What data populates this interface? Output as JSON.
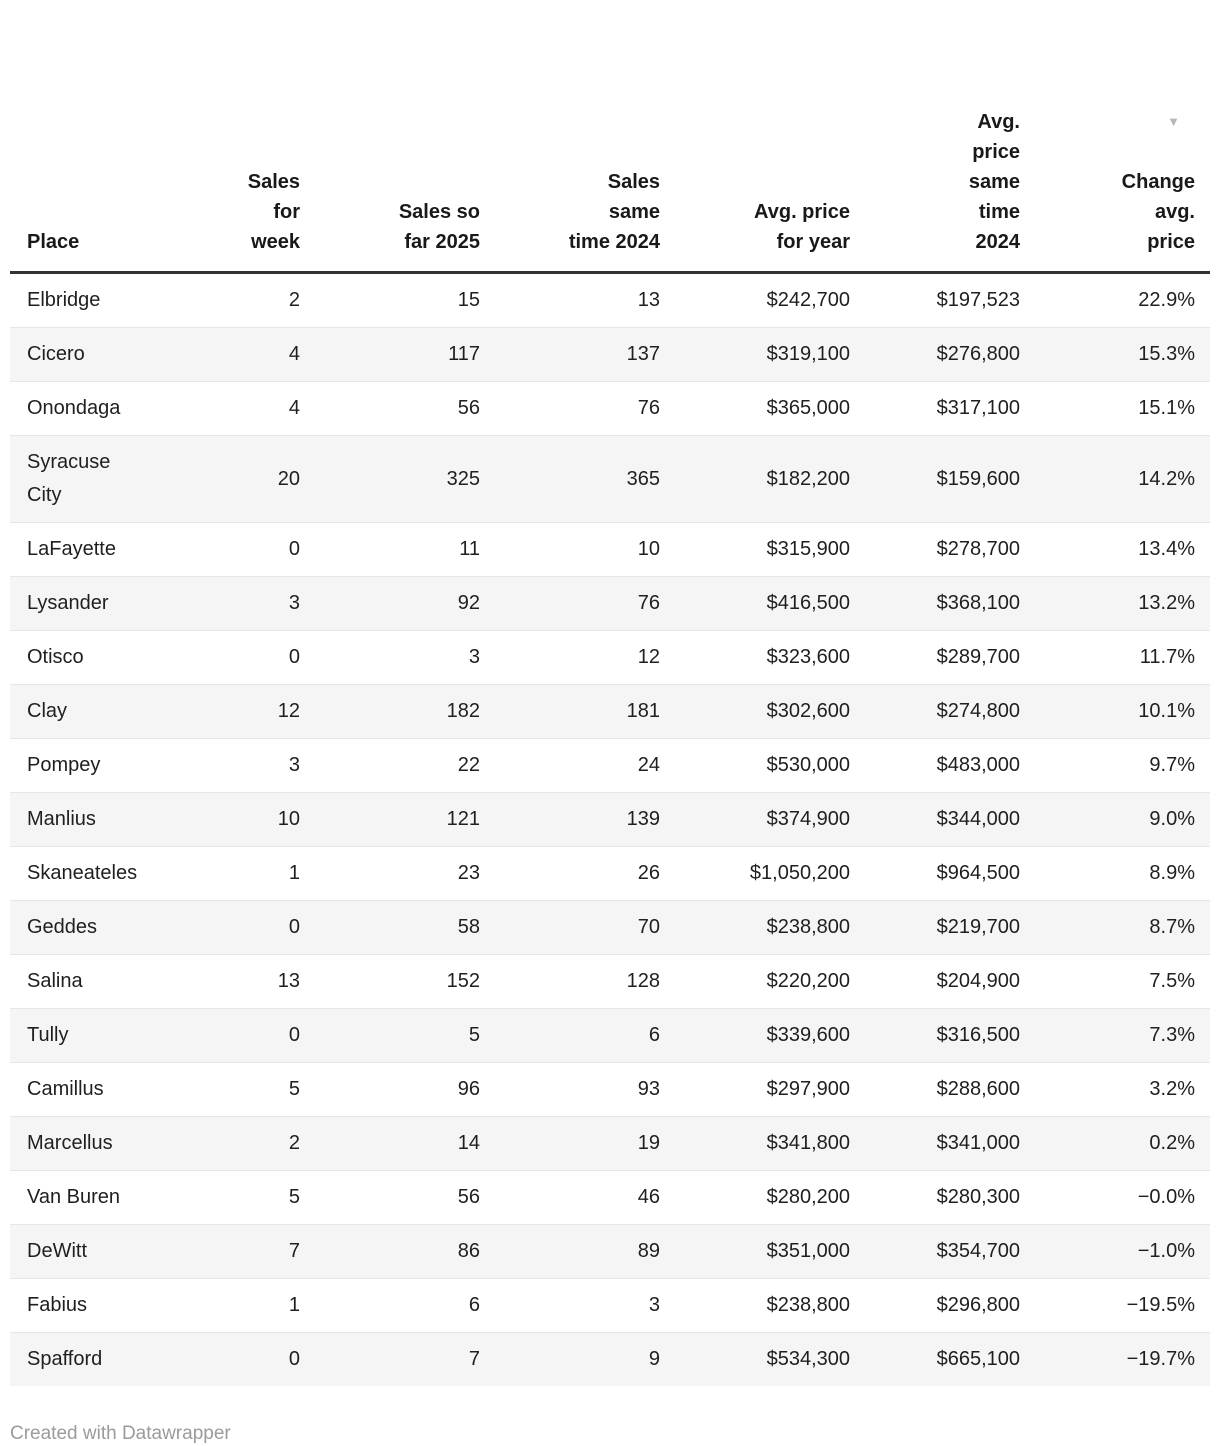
{
  "chart_data": {
    "type": "table",
    "columns": [
      {
        "id": "place",
        "label": "Place",
        "align": "left",
        "sort_indicator": false
      },
      {
        "id": "sales_week",
        "label": "Sales\nfor\nweek",
        "align": "right",
        "sort_indicator": false
      },
      {
        "id": "sales_2025",
        "label": "Sales so\nfar 2025",
        "align": "right",
        "sort_indicator": false
      },
      {
        "id": "sales_2024",
        "label": "Sales\nsame\ntime 2024",
        "align": "right",
        "sort_indicator": false
      },
      {
        "id": "avg_price_year",
        "label": "Avg. price\nfor year",
        "align": "right",
        "sort_indicator": false
      },
      {
        "id": "avg_price_2024",
        "label": "Avg.\nprice\nsame\ntime\n2024",
        "align": "right",
        "sort_indicator": false
      },
      {
        "id": "change",
        "label": "Change\navg.\nprice",
        "align": "right",
        "sort_indicator": true
      }
    ],
    "sort": {
      "column": "change",
      "direction": "descending"
    },
    "rows": [
      [
        "Elbridge",
        "2",
        "15",
        "13",
        "$242,700",
        "$197,523",
        "22.9%"
      ],
      [
        "Cicero",
        "4",
        "117",
        "137",
        "$319,100",
        "$276,800",
        "15.3%"
      ],
      [
        "Onondaga",
        "4",
        "56",
        "76",
        "$365,000",
        "$317,100",
        "15.1%"
      ],
      [
        "Syracuse\nCity",
        "20",
        "325",
        "365",
        "$182,200",
        "$159,600",
        "14.2%"
      ],
      [
        "LaFayette",
        "0",
        "11",
        "10",
        "$315,900",
        "$278,700",
        "13.4%"
      ],
      [
        "Lysander",
        "3",
        "92",
        "76",
        "$416,500",
        "$368,100",
        "13.2%"
      ],
      [
        "Otisco",
        "0",
        "3",
        "12",
        "$323,600",
        "$289,700",
        "11.7%"
      ],
      [
        "Clay",
        "12",
        "182",
        "181",
        "$302,600",
        "$274,800",
        "10.1%"
      ],
      [
        "Pompey",
        "3",
        "22",
        "24",
        "$530,000",
        "$483,000",
        "9.7%"
      ],
      [
        "Manlius",
        "10",
        "121",
        "139",
        "$374,900",
        "$344,000",
        "9.0%"
      ],
      [
        "Skaneateles",
        "1",
        "23",
        "26",
        "$1,050,200",
        "$964,500",
        "8.9%"
      ],
      [
        "Geddes",
        "0",
        "58",
        "70",
        "$238,800",
        "$219,700",
        "8.7%"
      ],
      [
        "Salina",
        "13",
        "152",
        "128",
        "$220,200",
        "$204,900",
        "7.5%"
      ],
      [
        "Tully",
        "0",
        "5",
        "6",
        "$339,600",
        "$316,500",
        "7.3%"
      ],
      [
        "Camillus",
        "5",
        "96",
        "93",
        "$297,900",
        "$288,600",
        "3.2%"
      ],
      [
        "Marcellus",
        "2",
        "14",
        "19",
        "$341,800",
        "$341,000",
        "0.2%"
      ],
      [
        "Van Buren",
        "5",
        "56",
        "46",
        "$280,200",
        "$280,300",
        "−0.0%"
      ],
      [
        "DeWitt",
        "7",
        "86",
        "89",
        "$351,000",
        "$354,700",
        "−1.0%"
      ],
      [
        "Fabius",
        "1",
        "6",
        "3",
        "$238,800",
        "$296,800",
        "−19.5%"
      ],
      [
        "Spafford",
        "0",
        "7",
        "9",
        "$534,300",
        "$665,100",
        "−19.7%"
      ]
    ]
  },
  "icons": {
    "sort_desc": "▼"
  },
  "colors": {
    "text": "#1f1f1f",
    "header_border": "#333333",
    "row_alt": "#f5f5f5",
    "row_divider": "#e6e6e6",
    "sort_icon": "#b8b8b8",
    "footer_text": "#9b9b9b"
  },
  "footer": {
    "attribution": "Created with Datawrapper"
  }
}
